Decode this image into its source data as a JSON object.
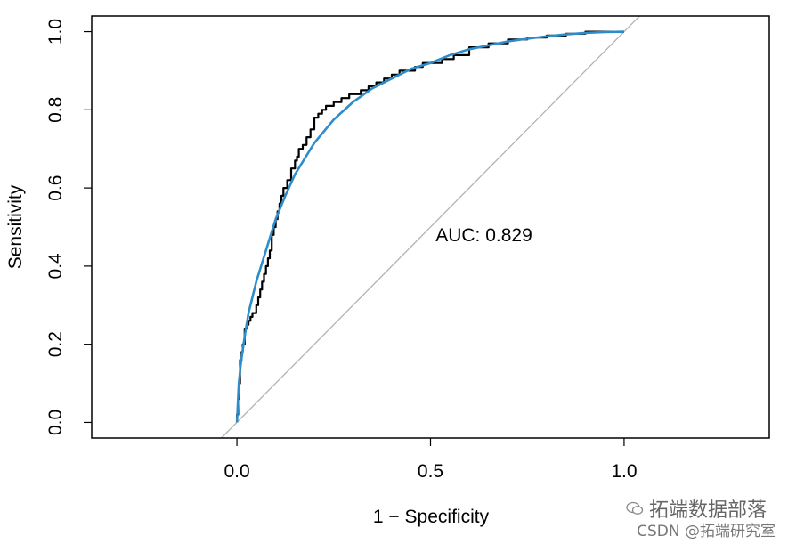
{
  "chart_data": {
    "type": "line",
    "title": "",
    "xlabel": "1 − Specificity",
    "ylabel": "Sensitivity",
    "xlim": [
      -0.375,
      1.375
    ],
    "ylim": [
      -0.04,
      1.04
    ],
    "xticks": [
      0.0,
      0.5,
      1.0
    ],
    "xtick_labels": [
      "0.0",
      "0.5",
      "1.0"
    ],
    "yticks": [
      0.0,
      0.2,
      0.4,
      0.6,
      0.8,
      1.0
    ],
    "ytick_labels": [
      "0.0",
      "0.2",
      "0.4",
      "0.6",
      "0.8",
      "1.0"
    ],
    "grid": false,
    "annotation": "AUC: 0.829",
    "annotation_position": [
      0.5,
      0.48
    ],
    "series": [
      {
        "kind": "empirical-roc-step",
        "color": "#000000",
        "x": [
          0.0,
          0.0,
          0.003,
          0.005,
          0.008,
          0.012,
          0.015,
          0.02,
          0.025,
          0.03,
          0.035,
          0.04,
          0.05,
          0.055,
          0.06,
          0.065,
          0.07,
          0.075,
          0.08,
          0.085,
          0.09,
          0.095,
          0.1,
          0.105,
          0.11,
          0.115,
          0.12,
          0.13,
          0.14,
          0.15,
          0.155,
          0.16,
          0.17,
          0.18,
          0.19,
          0.2,
          0.21,
          0.22,
          0.23,
          0.25,
          0.27,
          0.29,
          0.3,
          0.32,
          0.34,
          0.36,
          0.38,
          0.4,
          0.42,
          0.44,
          0.46,
          0.48,
          0.5,
          0.53,
          0.56,
          0.6,
          0.65,
          0.7,
          0.75,
          0.8,
          0.85,
          0.9,
          0.95,
          1.0
        ],
        "y": [
          0.0,
          0.02,
          0.06,
          0.1,
          0.16,
          0.18,
          0.2,
          0.24,
          0.25,
          0.26,
          0.27,
          0.28,
          0.3,
          0.32,
          0.34,
          0.36,
          0.38,
          0.4,
          0.42,
          0.44,
          0.48,
          0.5,
          0.52,
          0.54,
          0.56,
          0.58,
          0.6,
          0.62,
          0.65,
          0.67,
          0.68,
          0.7,
          0.71,
          0.73,
          0.75,
          0.78,
          0.79,
          0.8,
          0.81,
          0.82,
          0.83,
          0.84,
          0.84,
          0.85,
          0.86,
          0.87,
          0.88,
          0.89,
          0.9,
          0.9,
          0.91,
          0.92,
          0.92,
          0.93,
          0.94,
          0.96,
          0.97,
          0.98,
          0.985,
          0.99,
          0.995,
          1.0,
          1.0,
          1.0
        ]
      },
      {
        "kind": "smoothed-roc",
        "color": "#2f8ccb",
        "x": [
          0.0,
          0.005,
          0.01,
          0.02,
          0.03,
          0.05,
          0.075,
          0.1,
          0.125,
          0.15,
          0.2,
          0.25,
          0.3,
          0.35,
          0.4,
          0.45,
          0.5,
          0.55,
          0.6,
          0.65,
          0.7,
          0.75,
          0.8,
          0.85,
          0.9,
          0.95,
          1.0
        ],
        "y": [
          0.0,
          0.1,
          0.15,
          0.22,
          0.28,
          0.36,
          0.44,
          0.52,
          0.58,
          0.635,
          0.715,
          0.775,
          0.82,
          0.855,
          0.88,
          0.905,
          0.92,
          0.94,
          0.955,
          0.965,
          0.975,
          0.982,
          0.988,
          0.993,
          0.997,
          0.999,
          1.0
        ]
      },
      {
        "kind": "reference-diagonal",
        "color": "#b3b3b3",
        "x": [
          -0.05,
          1.05
        ],
        "y": [
          -0.05,
          1.05
        ]
      }
    ]
  },
  "watermark": {
    "line1": "拓端数据部落",
    "line2": "CSDN @拓端研究室"
  }
}
